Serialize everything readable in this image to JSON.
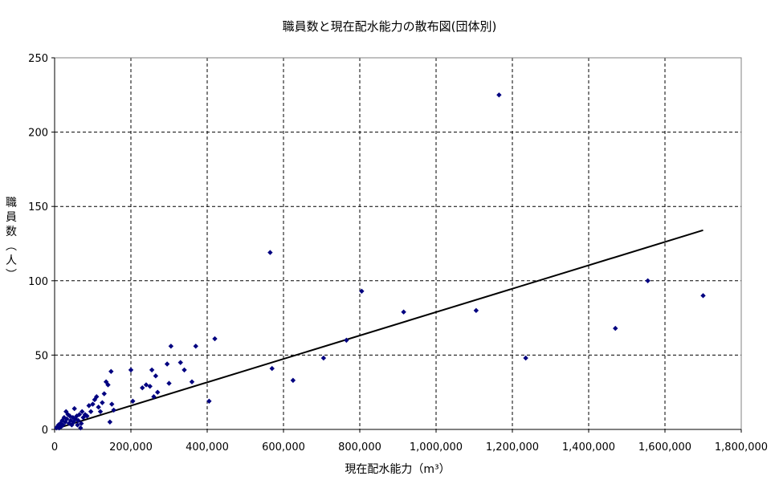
{
  "chart_data": {
    "type": "scatter",
    "title": "職員数と現在配水能力の散布図(団体別)",
    "xlabel": "現在配水能力（m³）",
    "ylabel": "職員数（人）",
    "xlim": [
      0,
      1800000
    ],
    "ylim": [
      0,
      250
    ],
    "x_ticks": [
      0,
      200000,
      400000,
      600000,
      800000,
      1000000,
      1200000,
      1400000,
      1600000,
      1800000
    ],
    "x_tick_labels": [
      "0",
      "200,000",
      "400,000",
      "600,000",
      "800,000",
      "1,000,000",
      "1,200,000",
      "1,400,000",
      "1,600,000",
      "1,800,000"
    ],
    "y_ticks": [
      0,
      50,
      100,
      150,
      200,
      250
    ],
    "y_tick_labels": [
      "0",
      "50",
      "100",
      "150",
      "200",
      "250"
    ],
    "grid": true,
    "grid_style": "dashed",
    "legend": "none",
    "marker_color": "#000080",
    "trendline_color": "#000000",
    "trendline": {
      "x": [
        10000,
        1700000
      ],
      "y": [
        1,
        134
      ]
    },
    "series": [
      {
        "points": [
          [
            5000,
            1
          ],
          [
            8000,
            2
          ],
          [
            10000,
            3
          ],
          [
            12000,
            1
          ],
          [
            15000,
            4
          ],
          [
            18000,
            2
          ],
          [
            20000,
            6
          ],
          [
            22000,
            3
          ],
          [
            25000,
            8
          ],
          [
            28000,
            5
          ],
          [
            30000,
            12
          ],
          [
            32000,
            7
          ],
          [
            35000,
            10
          ],
          [
            38000,
            4
          ],
          [
            40000,
            9
          ],
          [
            42000,
            6
          ],
          [
            45000,
            3
          ],
          [
            48000,
            8
          ],
          [
            50000,
            5
          ],
          [
            52000,
            14
          ],
          [
            55000,
            7
          ],
          [
            58000,
            9
          ],
          [
            60000,
            3
          ],
          [
            62000,
            6
          ],
          [
            65000,
            10
          ],
          [
            68000,
            1
          ],
          [
            70000,
            4
          ],
          [
            72000,
            12
          ],
          [
            75000,
            8
          ],
          [
            80000,
            10
          ],
          [
            85000,
            9
          ],
          [
            90000,
            16
          ],
          [
            95000,
            12
          ],
          [
            100000,
            17
          ],
          [
            105000,
            20
          ],
          [
            110000,
            22
          ],
          [
            115000,
            15
          ],
          [
            120000,
            12
          ],
          [
            125000,
            18
          ],
          [
            130000,
            24
          ],
          [
            135000,
            32
          ],
          [
            140000,
            30
          ],
          [
            145000,
            5
          ],
          [
            148000,
            39
          ],
          [
            150000,
            17
          ],
          [
            155000,
            13
          ],
          [
            200000,
            40
          ],
          [
            205000,
            19
          ],
          [
            230000,
            28
          ],
          [
            240000,
            30
          ],
          [
            250000,
            29
          ],
          [
            255000,
            40
          ],
          [
            260000,
            22
          ],
          [
            265000,
            36
          ],
          [
            270000,
            25
          ],
          [
            295000,
            44
          ],
          [
            300000,
            31
          ],
          [
            305000,
            56
          ],
          [
            330000,
            45
          ],
          [
            340000,
            40
          ],
          [
            360000,
            32
          ],
          [
            370000,
            56
          ],
          [
            405000,
            19
          ],
          [
            420000,
            61
          ],
          [
            565000,
            119
          ],
          [
            570000,
            41
          ],
          [
            625000,
            33
          ],
          [
            705000,
            48
          ],
          [
            765000,
            60
          ],
          [
            805000,
            93
          ],
          [
            915000,
            79
          ],
          [
            1105000,
            80
          ],
          [
            1165000,
            225
          ],
          [
            1235000,
            48
          ],
          [
            1470000,
            68
          ],
          [
            1555000,
            100
          ],
          [
            1700000,
            90
          ]
        ]
      }
    ]
  }
}
